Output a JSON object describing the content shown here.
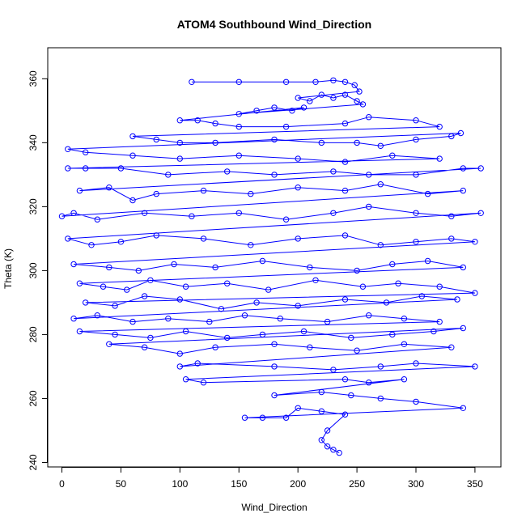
{
  "chart_data": {
    "type": "scatter",
    "title": "ATOM4 Southbound Wind_Direction",
    "xlabel": "Wind_Direction",
    "ylabel": "Theta (K)",
    "xlim": [
      -12,
      372
    ],
    "ylim": [
      238.6,
      369.7
    ],
    "xticks": [
      0,
      50,
      100,
      150,
      200,
      250,
      300,
      350
    ],
    "yticks": [
      240,
      260,
      280,
      300,
      320,
      340,
      360
    ],
    "grid": false,
    "legend": "none",
    "marker": "open-circle-with-connecting-lines",
    "series": [
      {
        "color": "#0000ff",
        "points": [
          [
            110,
            359
          ],
          [
            150,
            359
          ],
          [
            190,
            359
          ],
          [
            215,
            359
          ],
          [
            230,
            359.5
          ],
          [
            240,
            359
          ],
          [
            248,
            358
          ],
          [
            252,
            356
          ],
          [
            200,
            354
          ],
          [
            210,
            353
          ],
          [
            220,
            355
          ],
          [
            230,
            354
          ],
          [
            240,
            355
          ],
          [
            250,
            353
          ],
          [
            255,
            352
          ],
          [
            150,
            349
          ],
          [
            165,
            350
          ],
          [
            180,
            351
          ],
          [
            195,
            350
          ],
          [
            205,
            351
          ],
          [
            100,
            347
          ],
          [
            115,
            347
          ],
          [
            130,
            346
          ],
          [
            150,
            345
          ],
          [
            190,
            345
          ],
          [
            240,
            346
          ],
          [
            260,
            348
          ],
          [
            300,
            347
          ],
          [
            320,
            345
          ],
          [
            60,
            342
          ],
          [
            80,
            341
          ],
          [
            100,
            340
          ],
          [
            130,
            340
          ],
          [
            180,
            341
          ],
          [
            220,
            340
          ],
          [
            250,
            340
          ],
          [
            270,
            339
          ],
          [
            300,
            341
          ],
          [
            330,
            342
          ],
          [
            338,
            343
          ],
          [
            5,
            338
          ],
          [
            20,
            337
          ],
          [
            60,
            336
          ],
          [
            100,
            335
          ],
          [
            150,
            336
          ],
          [
            200,
            335
          ],
          [
            240,
            334
          ],
          [
            280,
            336
          ],
          [
            320,
            335
          ],
          [
            5,
            332
          ],
          [
            20,
            332
          ],
          [
            50,
            332
          ],
          [
            90,
            330
          ],
          [
            140,
            331
          ],
          [
            180,
            330
          ],
          [
            230,
            331
          ],
          [
            260,
            330
          ],
          [
            300,
            330
          ],
          [
            340,
            332
          ],
          [
            355,
            332
          ],
          [
            15,
            325
          ],
          [
            40,
            326
          ],
          [
            60,
            322
          ],
          [
            80,
            324
          ],
          [
            120,
            325
          ],
          [
            160,
            324
          ],
          [
            200,
            326
          ],
          [
            240,
            325
          ],
          [
            270,
            327
          ],
          [
            310,
            324
          ],
          [
            340,
            325
          ],
          [
            0,
            317
          ],
          [
            10,
            318
          ],
          [
            30,
            316
          ],
          [
            70,
            318
          ],
          [
            110,
            317
          ],
          [
            150,
            318
          ],
          [
            190,
            316
          ],
          [
            230,
            318
          ],
          [
            260,
            320
          ],
          [
            300,
            318
          ],
          [
            330,
            317
          ],
          [
            355,
            318
          ],
          [
            5,
            310
          ],
          [
            25,
            308
          ],
          [
            50,
            309
          ],
          [
            80,
            311
          ],
          [
            120,
            310
          ],
          [
            160,
            308
          ],
          [
            200,
            310
          ],
          [
            240,
            311
          ],
          [
            270,
            308
          ],
          [
            300,
            309
          ],
          [
            330,
            310
          ],
          [
            350,
            309
          ],
          [
            10,
            302
          ],
          [
            40,
            301
          ],
          [
            65,
            300
          ],
          [
            95,
            302
          ],
          [
            130,
            301
          ],
          [
            170,
            303
          ],
          [
            210,
            301
          ],
          [
            250,
            300
          ],
          [
            280,
            302
          ],
          [
            310,
            303
          ],
          [
            340,
            301
          ],
          [
            15,
            296
          ],
          [
            35,
            295
          ],
          [
            55,
            294
          ],
          [
            75,
            297
          ],
          [
            105,
            295
          ],
          [
            140,
            296
          ],
          [
            175,
            294
          ],
          [
            215,
            297
          ],
          [
            255,
            295
          ],
          [
            285,
            296
          ],
          [
            320,
            295
          ],
          [
            350,
            293
          ],
          [
            20,
            290
          ],
          [
            45,
            289
          ],
          [
            70,
            292
          ],
          [
            100,
            291
          ],
          [
            135,
            288
          ],
          [
            165,
            290
          ],
          [
            200,
            289
          ],
          [
            240,
            291
          ],
          [
            275,
            290
          ],
          [
            305,
            292
          ],
          [
            335,
            291
          ],
          [
            10,
            285
          ],
          [
            30,
            286
          ],
          [
            60,
            284
          ],
          [
            90,
            285
          ],
          [
            125,
            284
          ],
          [
            155,
            286
          ],
          [
            185,
            285
          ],
          [
            225,
            284
          ],
          [
            260,
            286
          ],
          [
            290,
            285
          ],
          [
            320,
            284
          ],
          [
            15,
            281
          ],
          [
            45,
            280
          ],
          [
            75,
            279
          ],
          [
            105,
            281
          ],
          [
            140,
            279
          ],
          [
            170,
            280
          ],
          [
            205,
            281
          ],
          [
            245,
            279
          ],
          [
            280,
            280
          ],
          [
            315,
            281
          ],
          [
            340,
            282
          ],
          [
            40,
            277
          ],
          [
            70,
            276
          ],
          [
            100,
            274
          ],
          [
            130,
            276
          ],
          [
            180,
            277
          ],
          [
            210,
            276
          ],
          [
            250,
            275
          ],
          [
            290,
            277
          ],
          [
            330,
            276
          ],
          [
            100,
            270
          ],
          [
            115,
            271
          ],
          [
            180,
            270
          ],
          [
            230,
            269
          ],
          [
            270,
            270
          ],
          [
            300,
            271
          ],
          [
            350,
            270
          ],
          [
            105,
            266
          ],
          [
            120,
            265
          ],
          [
            240,
            266
          ],
          [
            260,
            265
          ],
          [
            290,
            266
          ],
          [
            180,
            261
          ],
          [
            220,
            262
          ],
          [
            245,
            261
          ],
          [
            270,
            260
          ],
          [
            300,
            259
          ],
          [
            340,
            257
          ],
          [
            155,
            254
          ],
          [
            170,
            254
          ],
          [
            190,
            254
          ],
          [
            200,
            257
          ],
          [
            220,
            256
          ],
          [
            240,
            255
          ],
          [
            225,
            250
          ],
          [
            220,
            247
          ],
          [
            225,
            245
          ],
          [
            230,
            244
          ],
          [
            235,
            243
          ]
        ]
      }
    ]
  }
}
